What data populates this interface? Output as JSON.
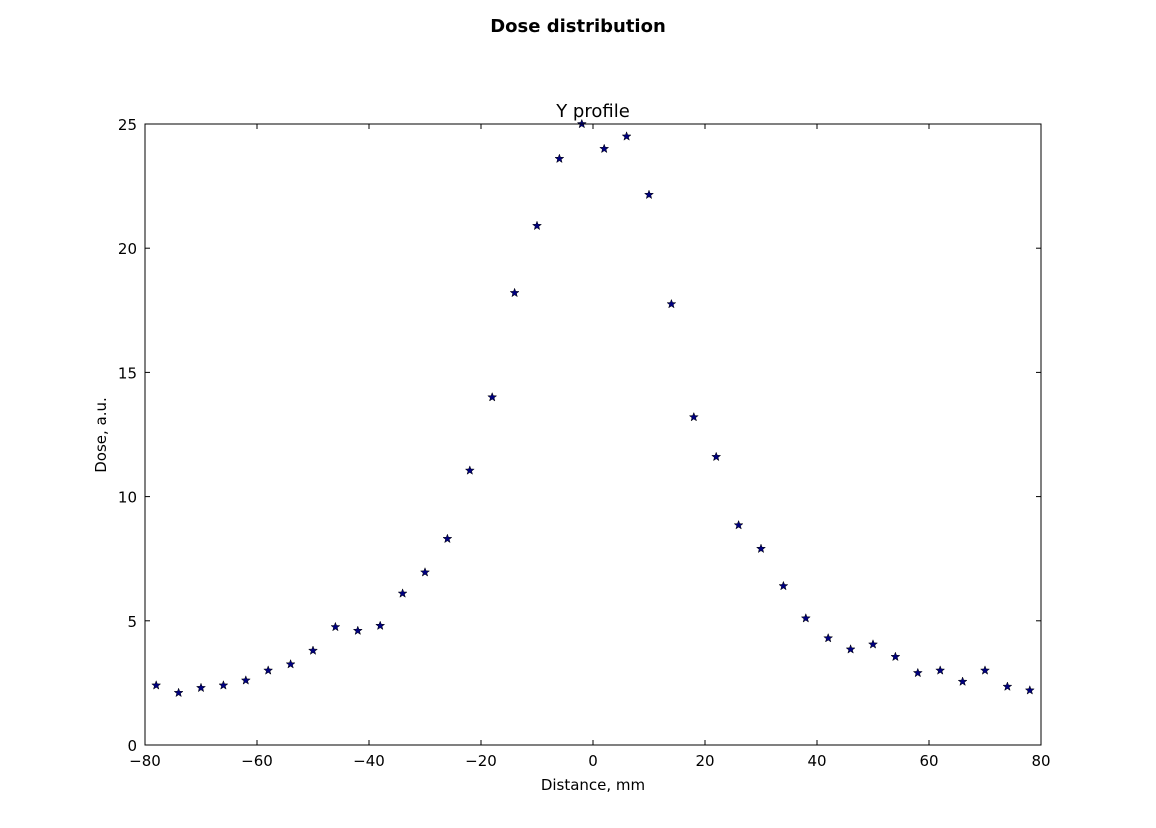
{
  "figure": {
    "suptitle": "Dose distribution"
  },
  "chart_data": {
    "type": "scatter",
    "title": "Y profile",
    "xlabel": "Distance, mm",
    "ylabel": "Dose, a.u.",
    "xlim": [
      -80,
      80
    ],
    "ylim": [
      0,
      25
    ],
    "xticks": [
      -80,
      -60,
      -40,
      -20,
      0,
      20,
      40,
      60,
      80
    ],
    "yticks": [
      0,
      5,
      10,
      15,
      20,
      25
    ],
    "xtick_labels": [
      "−80",
      "−60",
      "−40",
      "−20",
      "0",
      "20",
      "40",
      "60",
      "80"
    ],
    "ytick_labels": [
      "0",
      "5",
      "10",
      "15",
      "20",
      "25"
    ],
    "grid": false,
    "marker": "star",
    "marker_color": "#00007f",
    "series": [
      {
        "x": [
          -78,
          -74,
          -70,
          -66,
          -62,
          -58,
          -54,
          -50,
          -46,
          -42,
          -38,
          -34,
          -30,
          -26,
          -22,
          -18,
          -14,
          -10,
          -6,
          -2,
          2,
          6,
          10,
          14,
          18,
          22,
          26,
          30,
          34,
          38,
          42,
          46,
          50,
          54,
          58,
          62,
          66,
          70,
          74,
          78
        ],
        "y": [
          2.4,
          2.1,
          2.3,
          2.4,
          2.6,
          3.0,
          3.25,
          3.8,
          4.75,
          4.6,
          4.8,
          6.1,
          6.95,
          8.3,
          11.05,
          14.0,
          18.2,
          20.9,
          23.6,
          25.0,
          24.0,
          24.5,
          22.15,
          17.75,
          13.2,
          11.6,
          8.85,
          7.9,
          6.4,
          5.1,
          4.3,
          3.85,
          4.05,
          3.55,
          2.9,
          3.0,
          2.55,
          3.0,
          2.35,
          2.2
        ]
      }
    ]
  }
}
